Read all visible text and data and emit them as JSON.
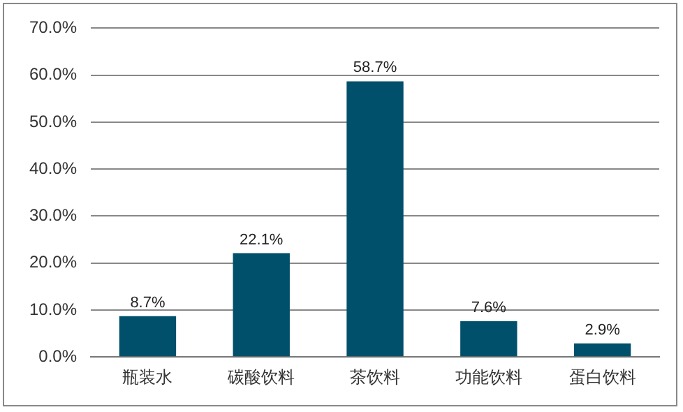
{
  "chart_data": {
    "type": "bar",
    "categories": [
      "瓶装水",
      "碳酸饮料",
      "茶饮料",
      "功能饮料",
      "蛋白饮料"
    ],
    "values": [
      8.7,
      22.1,
      58.7,
      7.6,
      2.9
    ],
    "value_labels": [
      "8.7%",
      "22.1%",
      "58.7%",
      "7.6%",
      "2.9%"
    ],
    "color": "#00506b",
    "ylim": [
      0,
      70
    ],
    "yticks": [
      {
        "value": 0,
        "label": "0.0%"
      },
      {
        "value": 10,
        "label": "10.0%"
      },
      {
        "value": 20,
        "label": "20.0%"
      },
      {
        "value": 30,
        "label": "30.0%"
      },
      {
        "value": 40,
        "label": "40.0%"
      },
      {
        "value": 50,
        "label": "50.0%"
      },
      {
        "value": 60,
        "label": "60.0%"
      },
      {
        "value": 70,
        "label": "70.0%"
      }
    ],
    "grid": "y",
    "legend": false
  }
}
